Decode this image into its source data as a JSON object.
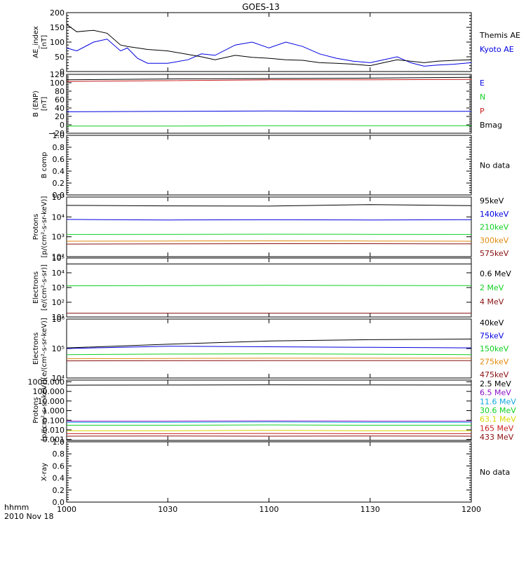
{
  "title": "GOES-13",
  "colors": {
    "black": "#000000",
    "blue": "#0000e0",
    "red": "#c81e1e",
    "orange": "#e08a10",
    "green": "#10d020",
    "yellow": "#d8d800",
    "cyan": "#10a8e0",
    "purple": "#8a10c8",
    "darkred": "#8a1010"
  },
  "time_axis": {
    "label_line1": "hhmm",
    "label_line2": "2010 Nov 18",
    "ticks": [
      "1000",
      "1030",
      "1100",
      "1130",
      "1200"
    ]
  },
  "chart_data": [
    {
      "type": "line",
      "id": "ae",
      "ylabel": [
        "AE_index",
        "[nT]"
      ],
      "scale": "linear",
      "ylim": [
        0,
        200
      ],
      "ticks": [
        0,
        50,
        100,
        150,
        200
      ],
      "tick_labels": [
        "0",
        "50",
        "100",
        "150",
        "200"
      ],
      "x": [
        1000,
        1003,
        1008,
        1012,
        1016,
        1018,
        1021,
        1024,
        1030,
        1036,
        1040,
        1044,
        1050,
        1055,
        1100,
        1105,
        1110,
        1115,
        1120,
        1125,
        1130,
        1134,
        1138,
        1142,
        1146,
        1150,
        1155,
        1200
      ],
      "series": [
        {
          "name": "Kyoto AE",
          "color_key": "blue",
          "values": [
            80,
            70,
            100,
            110,
            70,
            80,
            45,
            28,
            28,
            40,
            60,
            55,
            90,
            100,
            80,
            100,
            85,
            60,
            45,
            35,
            30,
            40,
            50,
            30,
            18,
            22,
            25,
            30
          ]
        },
        {
          "name": "Themis AE",
          "color_key": "black",
          "values": [
            160,
            135,
            140,
            130,
            90,
            85,
            80,
            75,
            70,
            58,
            50,
            40,
            55,
            48,
            45,
            40,
            38,
            30,
            28,
            25,
            20,
            30,
            40,
            35,
            30,
            35,
            38,
            40
          ]
        }
      ]
    },
    {
      "type": "line",
      "id": "bfield",
      "ylabel": [
        "B (ENP)",
        "[nT]"
      ],
      "scale": "linear",
      "ylim": [
        -20,
        120
      ],
      "ticks": [
        -20,
        0,
        20,
        40,
        60,
        80,
        100,
        120
      ],
      "tick_labels": [
        "−20",
        "0",
        "20",
        "40",
        "60",
        "80",
        "100",
        "120"
      ],
      "x": [
        1000,
        1030,
        1100,
        1130,
        1200
      ],
      "series": [
        {
          "name": "Bmag",
          "color_key": "black",
          "values": [
            107,
            109,
            110,
            111,
            113
          ]
        },
        {
          "name": "P",
          "color_key": "red",
          "values": [
            103,
            105,
            107,
            107,
            108
          ]
        },
        {
          "name": "N",
          "color_key": "green",
          "values": [
            -3,
            -3,
            -2,
            -2,
            -2
          ]
        },
        {
          "name": "E",
          "color_key": "blue",
          "values": [
            31,
            32,
            33,
            32,
            32
          ]
        }
      ]
    },
    {
      "type": "line",
      "id": "bcomp",
      "ylabel": [
        "B comp"
      ],
      "scale": "linear",
      "ylim": [
        0,
        1
      ],
      "ticks": [
        0,
        0.2,
        0.4,
        0.6,
        0.8,
        1.0
      ],
      "tick_labels": [
        "0.0",
        "0.2",
        "0.4",
        "0.6",
        "0.8",
        "1.0"
      ],
      "note": "No data",
      "series": []
    },
    {
      "type": "line",
      "id": "protons1",
      "ylabel": [
        "Protons",
        "[p/(cm²-s-sr-keV)]"
      ],
      "scale": "log",
      "ylim": [
        100,
        100000
      ],
      "ticks": [
        100,
        1000,
        10000,
        100000
      ],
      "tick_labels": [
        "10²",
        "10³",
        "10⁴",
        "10⁵"
      ],
      "x": [
        1000,
        1030,
        1100,
        1130,
        1200
      ],
      "series": [
        {
          "name": "575keV",
          "color_key": "darkred",
          "values": [
            430,
            440,
            450,
            450,
            440
          ]
        },
        {
          "name": "300keV",
          "color_key": "orange",
          "values": [
            600,
            610,
            620,
            610,
            600
          ]
        },
        {
          "name": "210keV",
          "color_key": "green",
          "values": [
            1300,
            1320,
            1350,
            1330,
            1300
          ]
        },
        {
          "name": "140keV",
          "color_key": "blue",
          "values": [
            7500,
            7000,
            7200,
            7000,
            7300
          ]
        },
        {
          "name": "95keV",
          "color_key": "black",
          "values": [
            38000,
            36000,
            35000,
            42000,
            37000
          ]
        }
      ]
    },
    {
      "type": "line",
      "id": "electrons1",
      "ylabel": [
        "Electrons",
        "[e/(cm²-s-sr)]"
      ],
      "scale": "log",
      "ylim": [
        10,
        100000
      ],
      "ticks": [
        10,
        100,
        1000,
        10000,
        100000
      ],
      "tick_labels": [
        "10¹",
        "10²",
        "10³",
        "10⁴",
        "10⁵"
      ],
      "x": [
        1000,
        1030,
        1100,
        1130,
        1200
      ],
      "series": [
        {
          "name": "4 MeV",
          "color_key": "darkred",
          "values": [
            18,
            18,
            18,
            18,
            18
          ]
        },
        {
          "name": "2 MeV",
          "color_key": "green",
          "values": [
            1300,
            1350,
            1400,
            1380,
            1350
          ]
        },
        {
          "name": "0.6 MeV",
          "color_key": "black",
          "values": [
            40000,
            40000,
            40000,
            40000,
            40000
          ]
        }
      ]
    },
    {
      "type": "line",
      "id": "electrons2",
      "ylabel": [
        "Electrons",
        "[e/(cm²-s-sr-keV)]"
      ],
      "scale": "log",
      "ylim": [
        10000,
        1000000
      ],
      "ticks": [
        10000,
        100000,
        1000000
      ],
      "tick_labels": [
        "10⁴",
        "10⁵",
        "10⁶"
      ],
      "x": [
        1000,
        1030,
        1100,
        1130,
        1200
      ],
      "series": [
        {
          "name": "475keV",
          "color_key": "darkred",
          "values": [
            38000,
            38500,
            39000,
            39000,
            39000
          ]
        },
        {
          "name": "275keV",
          "color_key": "orange",
          "values": [
            45000,
            46000,
            47000,
            47000,
            47000
          ]
        },
        {
          "name": "150keV",
          "color_key": "green",
          "values": [
            62000,
            65000,
            66000,
            64000,
            62000
          ]
        },
        {
          "name": "75keV",
          "color_key": "blue",
          "values": [
            100000,
            120000,
            115000,
            110000,
            105000
          ]
        },
        {
          "name": "40keV",
          "color_key": "black",
          "values": [
            105000,
            140000,
            180000,
            200000,
            210000
          ]
        }
      ]
    },
    {
      "type": "line",
      "id": "protons2",
      "ylabel": [
        "Protons",
        "[p/(cm²-s-sr-keV)]"
      ],
      "scale": "log",
      "ylim": [
        0.0008,
        1500
      ],
      "ticks": [
        0.001,
        0.01,
        0.1,
        1,
        10,
        100,
        1000
      ],
      "tick_labels": [
        "0.001",
        "0.010",
        "0.100",
        "1.000",
        "10.000",
        "100.000",
        "1000.000"
      ],
      "x": [
        1000,
        1030,
        1100,
        1130,
        1200
      ],
      "series": [
        {
          "name": "433 MeV",
          "color_key": "darkred",
          "values": [
            0.0022,
            0.0023,
            0.0022,
            0.0023,
            0.0022
          ]
        },
        {
          "name": "165 MeV",
          "color_key": "red",
          "values": [
            0.004,
            0.004,
            0.0042,
            0.004,
            0.004
          ]
        },
        {
          "name": "63.1 MeV",
          "color_key": "yellow",
          "values": [
            0.008,
            0.008,
            0.009,
            0.008,
            0.008
          ]
        },
        {
          "name": "30.6 MeV",
          "color_key": "green",
          "values": [
            0.03,
            0.03,
            0.032,
            0.03,
            0.03
          ]
        },
        {
          "name": "11.6 MeV",
          "color_key": "cyan",
          "values": [
            0.06,
            0.06,
            0.065,
            0.06,
            0.06
          ]
        },
        {
          "name": "6.5 MeV",
          "color_key": "purple",
          "values": [
            0.08,
            0.08,
            0.085,
            0.08,
            0.08
          ]
        },
        {
          "name": "2.5 MeV",
          "color_key": "black",
          "values": [
            450,
            460,
            480,
            470,
            460
          ]
        }
      ]
    },
    {
      "type": "line",
      "id": "xray",
      "ylabel": [
        "X-ray"
      ],
      "scale": "linear",
      "ylim": [
        0,
        1
      ],
      "ticks": [
        0,
        0.2,
        0.4,
        0.6,
        0.8,
        1.0
      ],
      "tick_labels": [
        "0.0",
        "0.2",
        "0.4",
        "0.6",
        "0.8",
        "1.0"
      ],
      "note": "No data",
      "series": []
    }
  ]
}
